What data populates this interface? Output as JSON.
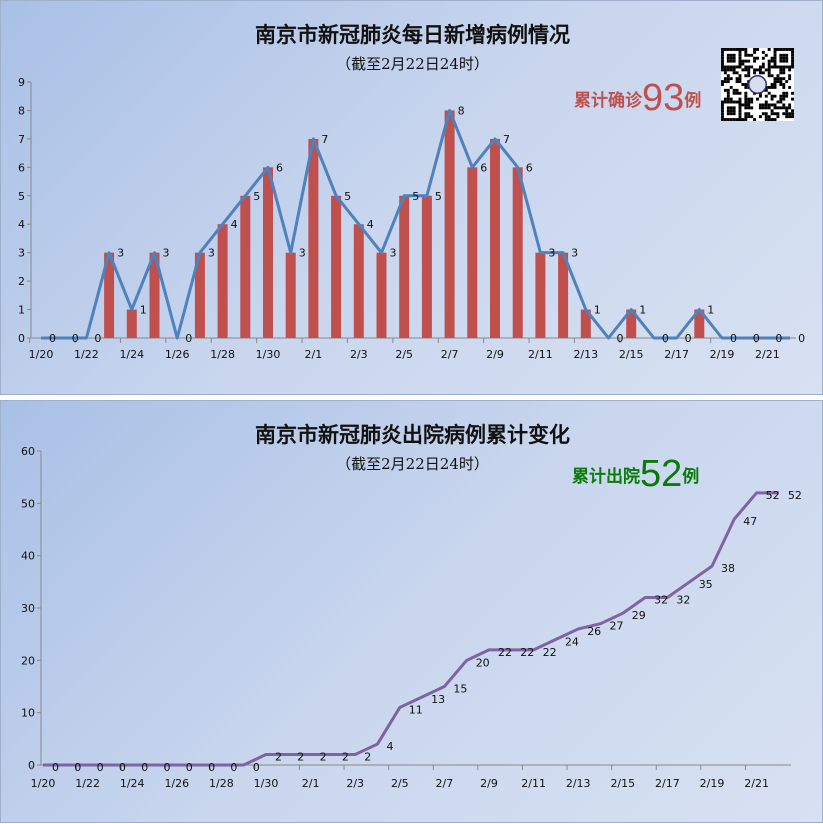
{
  "chart_data": [
    {
      "type": "bar+line",
      "title": "南京市新冠肺炎每日新增病例情况",
      "subtitle": "（截至2月22日24时）",
      "annotation": {
        "prefix": "累计确诊",
        "number": "93",
        "suffix": "例",
        "color": "#c0504d"
      },
      "categories": [
        "1/20",
        "1/21",
        "1/22",
        "1/23",
        "1/24",
        "1/25",
        "1/26",
        "1/27",
        "1/28",
        "1/29",
        "1/30",
        "1/31",
        "2/1",
        "2/2",
        "2/3",
        "2/4",
        "2/5",
        "2/6",
        "2/7",
        "2/8",
        "2/9",
        "2/10",
        "2/11",
        "2/12",
        "2/13",
        "2/14",
        "2/15",
        "2/16",
        "2/17",
        "2/18",
        "2/19",
        "2/20",
        "2/21",
        "2/22"
      ],
      "tick_labels": [
        "1/20",
        "1/22",
        "1/24",
        "1/26",
        "1/28",
        "1/30",
        "2/1",
        "2/3",
        "2/5",
        "2/7",
        "2/9",
        "2/11",
        "2/13",
        "2/15",
        "2/17",
        "2/19",
        "2/21"
      ],
      "values": [
        0,
        0,
        0,
        3,
        1,
        3,
        0,
        3,
        4,
        5,
        6,
        3,
        7,
        5,
        4,
        3,
        5,
        5,
        8,
        6,
        7,
        6,
        3,
        3,
        1,
        0,
        1,
        0,
        0,
        1,
        0,
        0,
        0,
        0
      ],
      "ylim": [
        0,
        9
      ],
      "yticks": [
        0,
        1,
        2,
        3,
        4,
        5,
        6,
        7,
        8,
        9
      ],
      "bar_color": "#c0504d",
      "line_color": "#4f81bd",
      "grid": false
    },
    {
      "type": "line",
      "title": "南京市新冠肺炎出院病例累计变化",
      "subtitle": "（截至2月22日24时）",
      "annotation": {
        "prefix": "累计出院",
        "number": "52",
        "suffix": "例",
        "color": "#0a7a0a"
      },
      "categories": [
        "1/20",
        "1/21",
        "1/22",
        "1/23",
        "1/24",
        "1/25",
        "1/26",
        "1/27",
        "1/28",
        "1/29",
        "1/30",
        "1/31",
        "2/1",
        "2/2",
        "2/3",
        "2/4",
        "2/5",
        "2/6",
        "2/7",
        "2/8",
        "2/9",
        "2/10",
        "2/11",
        "2/12",
        "2/13",
        "2/14",
        "2/15",
        "2/16",
        "2/17",
        "2/18",
        "2/19",
        "2/20",
        "2/21",
        "2/22"
      ],
      "tick_labels": [
        "1/20",
        "1/22",
        "1/24",
        "1/26",
        "1/28",
        "1/30",
        "2/1",
        "2/3",
        "2/5",
        "2/7",
        "2/9",
        "2/11",
        "2/13",
        "2/15",
        "2/17",
        "2/19",
        "2/21"
      ],
      "values": [
        0,
        0,
        0,
        0,
        0,
        0,
        0,
        0,
        0,
        0,
        2,
        2,
        2,
        2,
        2,
        4,
        11,
        13,
        15,
        20,
        22,
        22,
        22,
        24,
        26,
        27,
        29,
        32,
        32,
        35,
        38,
        47,
        52,
        52
      ],
      "ylim": [
        0,
        60
      ],
      "yticks": [
        0,
        10,
        20,
        30,
        40,
        50,
        60
      ],
      "line_color": "#8064a2",
      "grid": false
    }
  ]
}
